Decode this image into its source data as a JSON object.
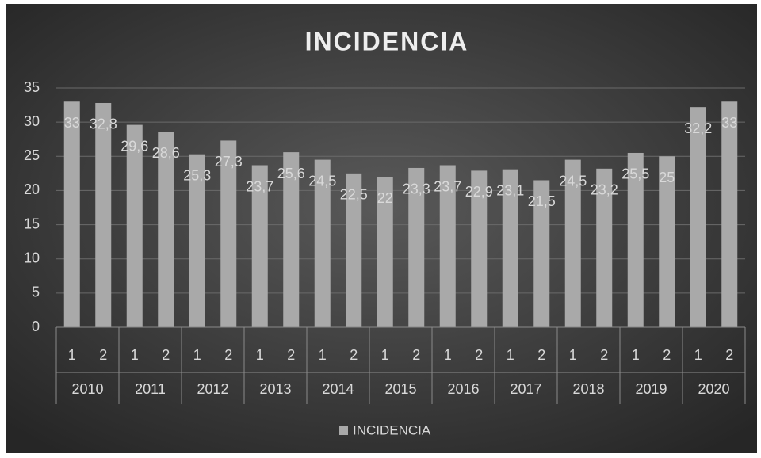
{
  "chart_data": {
    "type": "bar",
    "title": "INCIDENCIA",
    "categories": [
      "1",
      "2",
      "1",
      "2",
      "1",
      "2",
      "1",
      "2",
      "1",
      "2",
      "1",
      "2",
      "1",
      "2",
      "1",
      "2",
      "1",
      "2",
      "1",
      "2",
      "1",
      "2"
    ],
    "years": [
      "2010",
      "2011",
      "2012",
      "2013",
      "2014",
      "2015",
      "2016",
      "2017",
      "2018",
      "2019",
      "2020"
    ],
    "series": [
      {
        "name": "INCIDENCIA",
        "color": "#a9a9a9",
        "values": [
          33,
          32.8,
          29.6,
          28.6,
          25.3,
          27.3,
          23.7,
          25.6,
          24.5,
          22.5,
          22,
          23.3,
          23.7,
          22.9,
          23.1,
          21.5,
          24.5,
          23.2,
          25.5,
          25,
          32.2,
          33
        ],
        "value_labels": [
          "33",
          "32,8",
          "29,6",
          "28,6",
          "25,3",
          "27,3",
          "23,7",
          "25,6",
          "24,5",
          "22,5",
          "22",
          "23,3",
          "23,7",
          "22,9",
          "23,1",
          "21,5",
          "24,5",
          "23,2",
          "25,5",
          "25",
          "32,2",
          "33"
        ]
      }
    ],
    "ylim": [
      0,
      35
    ],
    "yticks": [
      0,
      5,
      10,
      15,
      20,
      25,
      30,
      35
    ],
    "grid": true,
    "legend": "bottom"
  }
}
